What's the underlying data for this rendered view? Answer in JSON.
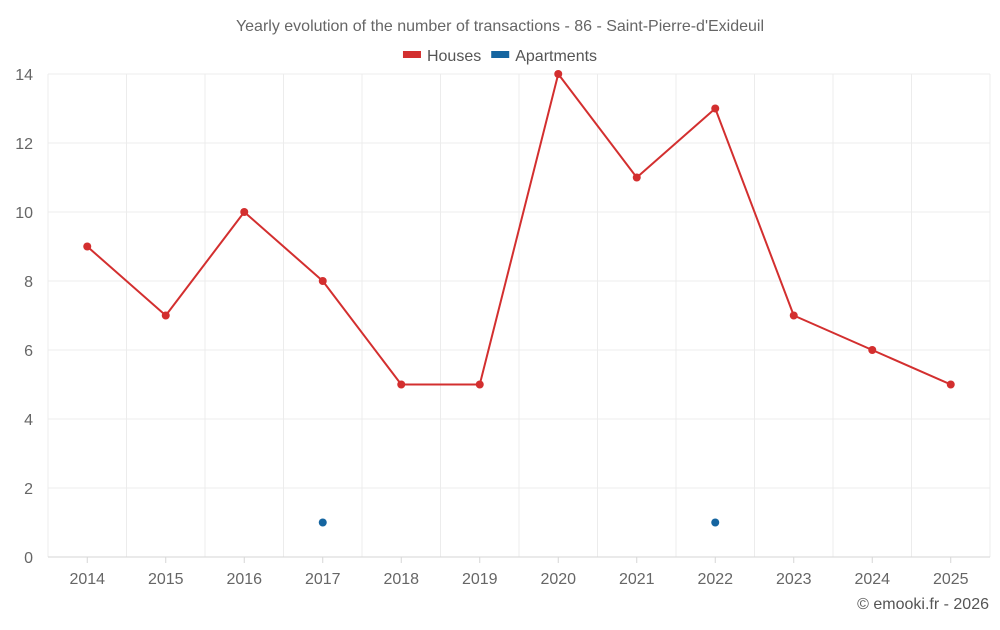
{
  "chart_data": {
    "type": "line",
    "title": "Yearly evolution of the number of transactions - 86 - Saint-Pierre-d'Exideuil",
    "categories": [
      "2014",
      "2015",
      "2016",
      "2017",
      "2018",
      "2019",
      "2020",
      "2021",
      "2022",
      "2023",
      "2024",
      "2025"
    ],
    "series": [
      {
        "name": "Houses",
        "color": "#d32f2f",
        "values": [
          9,
          7,
          10,
          8,
          5,
          5,
          14,
          11,
          13,
          7,
          6,
          5
        ]
      },
      {
        "name": "Apartments",
        "color": "#1565a0",
        "values": [
          null,
          null,
          null,
          1,
          null,
          null,
          null,
          null,
          1,
          null,
          null,
          null
        ]
      }
    ],
    "ylim": [
      0,
      14
    ],
    "yticks": [
      0,
      2,
      4,
      6,
      8,
      10,
      12,
      14
    ],
    "xlabel": "",
    "ylabel": "",
    "grid": true,
    "legend_position": "top-center"
  },
  "footer": {
    "copyright": "© emooki.fr - 2026"
  }
}
